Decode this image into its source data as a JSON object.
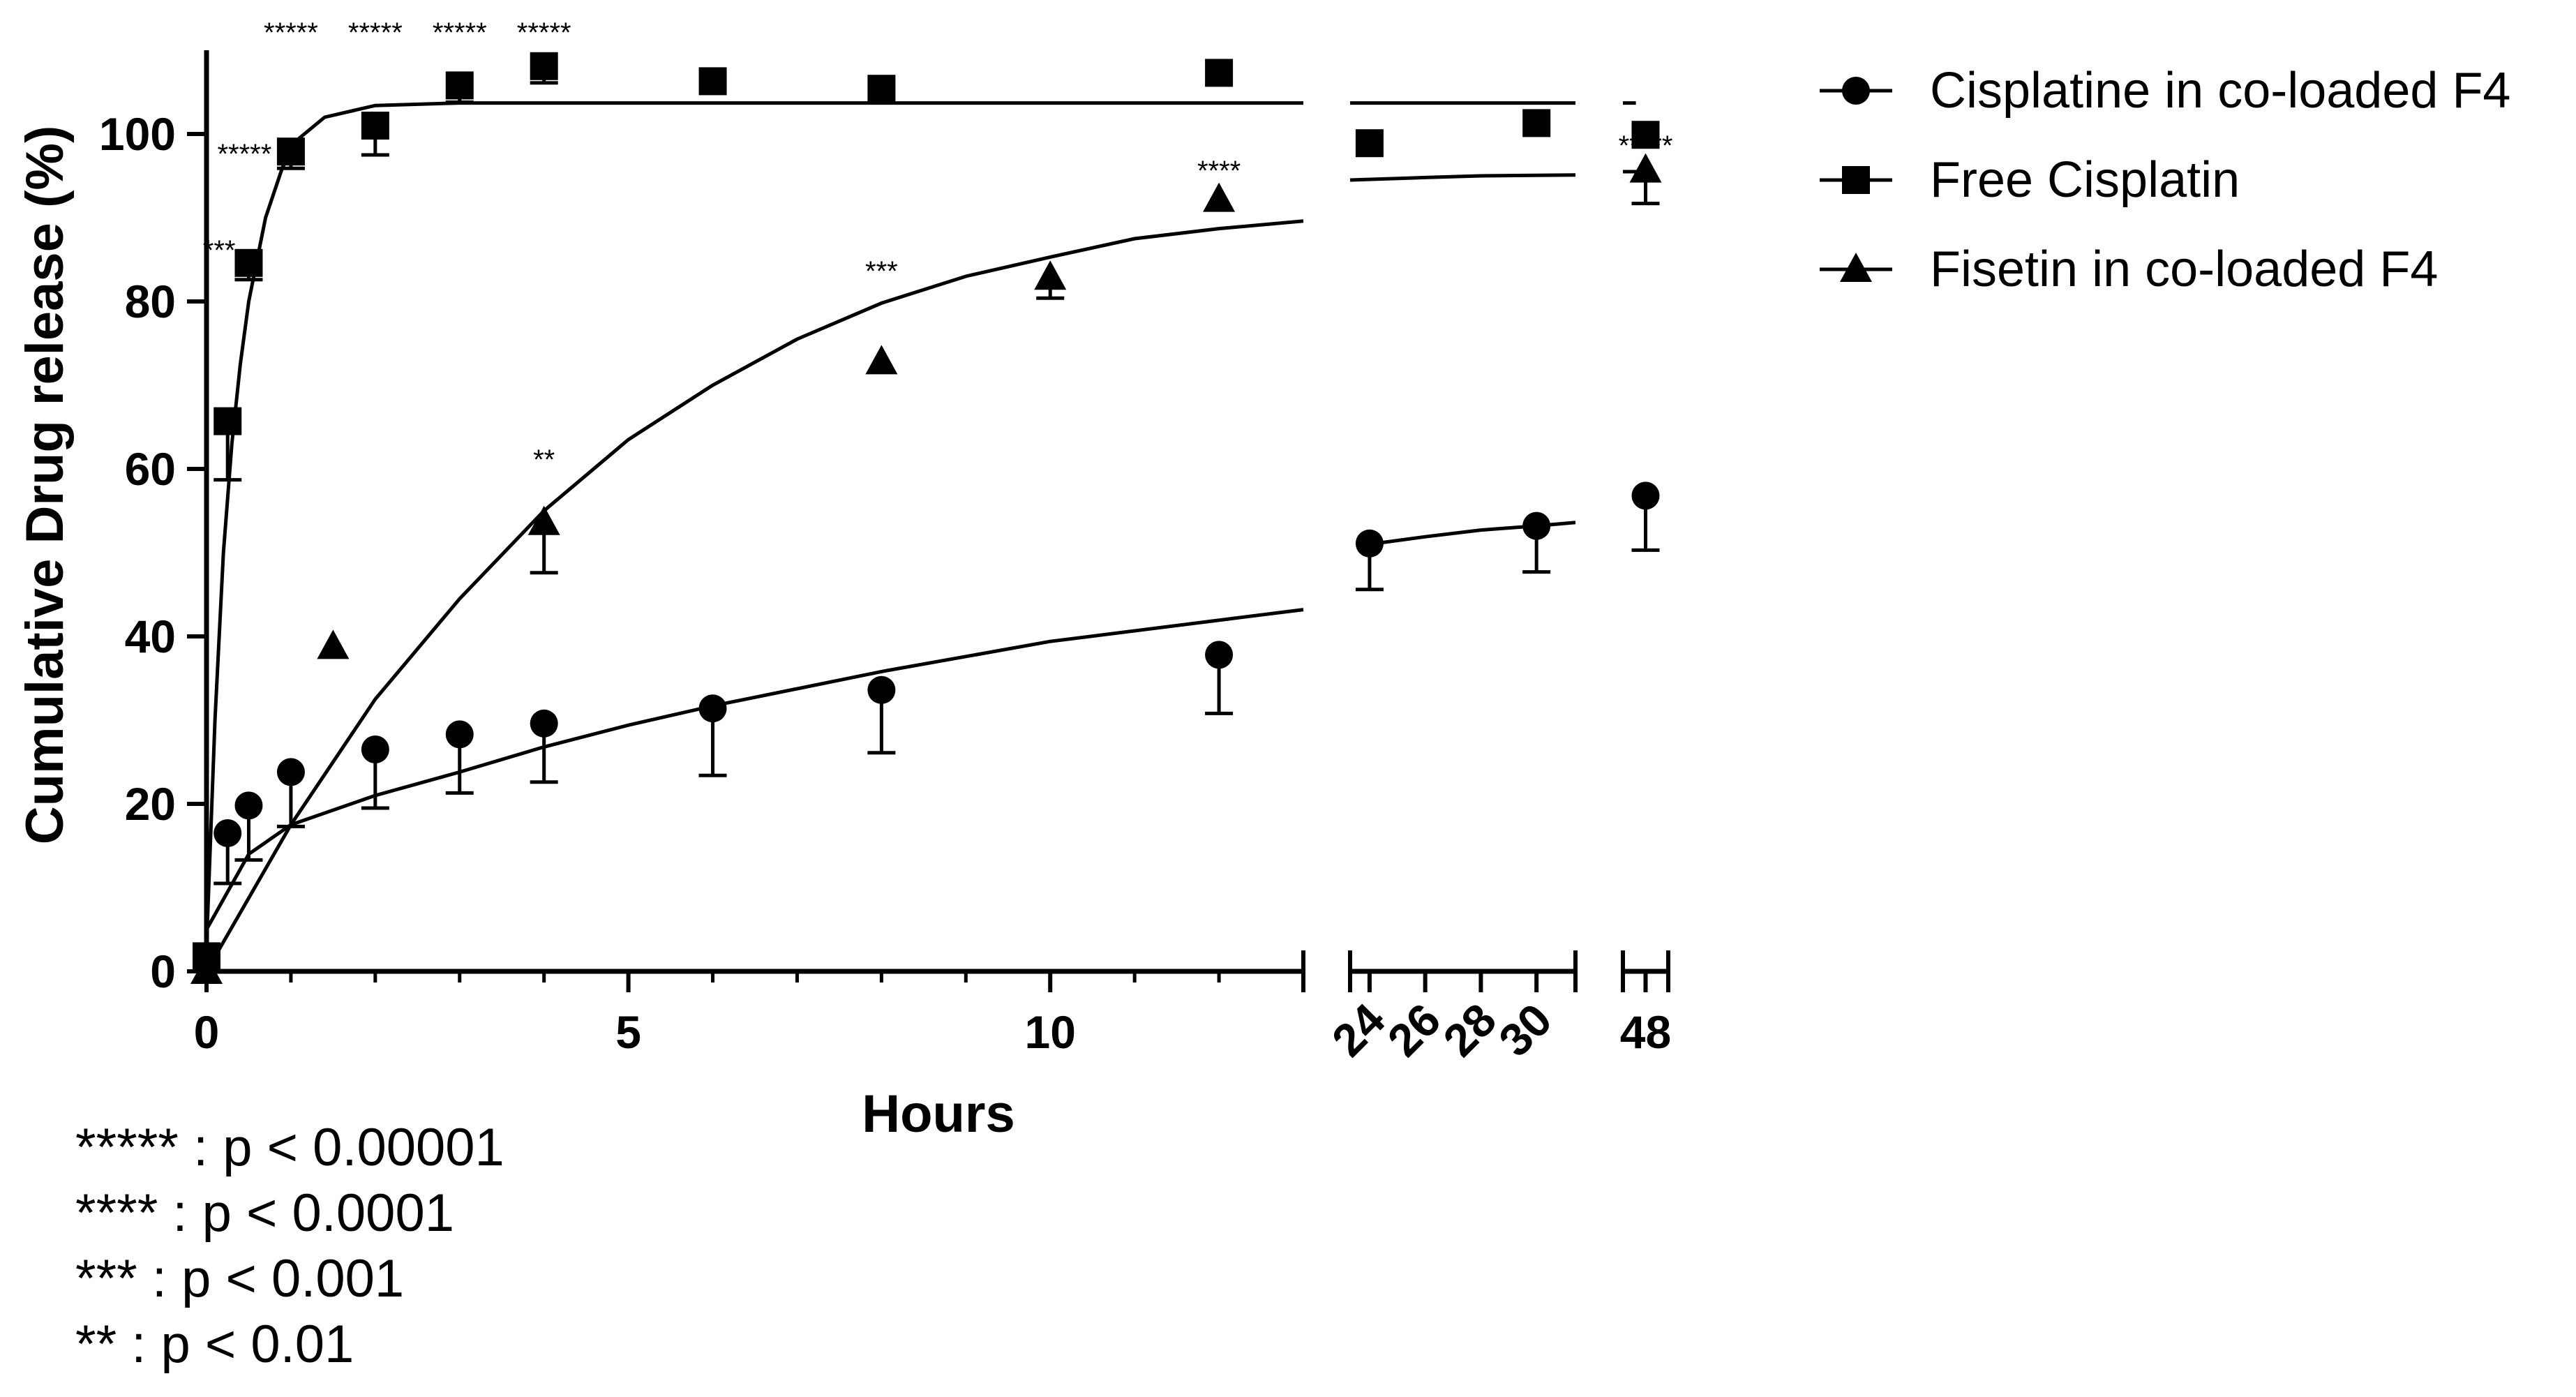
{
  "chart_data": {
    "type": "scatter",
    "title": "",
    "xlabel": "Hours",
    "ylabel": "Cumulative Drug release (%)",
    "ylim": [
      0,
      110
    ],
    "yticks": [
      0,
      20,
      40,
      60,
      80,
      100
    ],
    "grid": false,
    "legend_position": "top-right",
    "x_segments": [
      {
        "range": [
          0,
          13
        ],
        "ticks": [
          0,
          5,
          10
        ],
        "tick_labels": [
          "0",
          "5",
          "10"
        ],
        "minor_step": 1
      },
      {
        "range": [
          23.3,
          31.4
        ],
        "ticks": [
          24,
          26,
          28,
          30
        ],
        "tick_labels": [
          "24",
          "26",
          "28",
          "30"
        ],
        "label_rotation": -45
      },
      {
        "range": [
          47.3,
          48.7
        ],
        "ticks": [
          48
        ],
        "tick_labels": [
          "48"
        ]
      }
    ],
    "series": [
      {
        "name": "Cisplatine in co-loaded F4",
        "marker": "circle",
        "points": [
          {
            "x": 0,
            "y": 1.5,
            "err": 0
          },
          {
            "x": 0.25,
            "y": 16.5,
            "err": 6
          },
          {
            "x": 0.5,
            "y": 19.8,
            "err": 6.5
          },
          {
            "x": 1,
            "y": 23.8,
            "err": 6.5
          },
          {
            "x": 2,
            "y": 26.5,
            "err": 7
          },
          {
            "x": 3,
            "y": 28.3,
            "err": 7
          },
          {
            "x": 4,
            "y": 29.6,
            "err": 7
          },
          {
            "x": 6,
            "y": 31.4,
            "err": 8
          },
          {
            "x": 8,
            "y": 33.6,
            "err": 7.5
          },
          {
            "x": 12,
            "y": 37.8,
            "err": 7
          },
          {
            "x": 24,
            "y": 51.1,
            "err": 5.5
          },
          {
            "x": 30,
            "y": 53.2,
            "err": 5.5
          },
          {
            "x": 48,
            "y": 56.8,
            "err": 6.5
          }
        ],
        "fit": [
          [
            0,
            5
          ],
          [
            0.5,
            14
          ],
          [
            1,
            17.5
          ],
          [
            2,
            21
          ],
          [
            3,
            23.8
          ],
          [
            4,
            26.8
          ],
          [
            5,
            29.4
          ],
          [
            6,
            31.7
          ],
          [
            8,
            35.8
          ],
          [
            10,
            39.4
          ],
          [
            13,
            43.2
          ],
          [
            24,
            51
          ],
          [
            26,
            51.9
          ],
          [
            28,
            52.7
          ],
          [
            30,
            53.2
          ],
          [
            31.4,
            53.6
          ]
        ]
      },
      {
        "name": "Free Cisplatin",
        "marker": "square",
        "points": [
          {
            "x": 0,
            "y": 1.8,
            "err": 0
          },
          {
            "x": 0.25,
            "y": 65.7,
            "err": 7
          },
          {
            "x": 0.5,
            "y": 84.6,
            "err": 2
          },
          {
            "x": 1,
            "y": 97.9,
            "err": 2
          },
          {
            "x": 2,
            "y": 101,
            "err": 3.5
          },
          {
            "x": 3,
            "y": 105.8,
            "err": 2
          },
          {
            "x": 4,
            "y": 108.1,
            "err": 2
          },
          {
            "x": 6,
            "y": 106.3,
            "err": 0
          },
          {
            "x": 8,
            "y": 105.4,
            "err": 0
          },
          {
            "x": 12,
            "y": 107.3,
            "err": 0
          },
          {
            "x": 24,
            "y": 98.9,
            "err": 0
          },
          {
            "x": 30,
            "y": 101.3,
            "err": 0
          },
          {
            "x": 48,
            "y": 99.9,
            "err": 0
          }
        ],
        "fit": [
          [
            0,
            3
          ],
          [
            0.1,
            30
          ],
          [
            0.2,
            50
          ],
          [
            0.3,
            63
          ],
          [
            0.4,
            72.5
          ],
          [
            0.5,
            80
          ],
          [
            0.7,
            90
          ],
          [
            0.9,
            96
          ],
          [
            1.1,
            99.5
          ],
          [
            1.4,
            102
          ],
          [
            2,
            103.4
          ],
          [
            3,
            103.7
          ],
          [
            6,
            103.7
          ],
          [
            13,
            103.7
          ],
          [
            23.3,
            103.7
          ],
          [
            31.4,
            103.7
          ],
          [
            47.3,
            103.7
          ],
          [
            47.7,
            103.7
          ]
        ]
      },
      {
        "name": "Fisetin in co-loaded F4",
        "marker": "triangle",
        "points": [
          {
            "x": 0,
            "y": 0,
            "err": 0
          },
          {
            "x": 1.5,
            "y": 38.8,
            "err": 0
          },
          {
            "x": 4,
            "y": 53.6,
            "err": 6
          },
          {
            "x": 8,
            "y": 72.8,
            "err": 0
          },
          {
            "x": 10,
            "y": 82.9,
            "err": 2.5
          },
          {
            "x": 12,
            "y": 92.2,
            "err": 0
          },
          {
            "x": 48,
            "y": 95.7,
            "err": 4
          }
        ],
        "fit": [
          [
            0,
            0
          ],
          [
            1,
            17.5
          ],
          [
            2,
            32.5
          ],
          [
            3,
            44.5
          ],
          [
            4,
            55
          ],
          [
            5,
            63.5
          ],
          [
            6,
            70
          ],
          [
            7,
            75.5
          ],
          [
            8,
            79.8
          ],
          [
            9,
            83
          ],
          [
            10,
            85.3
          ],
          [
            11,
            87.5
          ],
          [
            12,
            88.7
          ],
          [
            13,
            89.6
          ],
          [
            23.3,
            94.5
          ],
          [
            26,
            94.8
          ],
          [
            28,
            95
          ],
          [
            31.4,
            95.1
          ],
          [
            47.3,
            95.5
          ],
          [
            48,
            95.5
          ]
        ]
      }
    ],
    "annotations": [
      {
        "text": "***",
        "x": 0.15,
        "y": 85
      },
      {
        "text": "*****",
        "x": 0.45,
        "y": 96.5
      },
      {
        "text": "*****",
        "x": 1,
        "y": 111
      },
      {
        "text": "*****",
        "x": 2,
        "y": 111
      },
      {
        "text": "*****",
        "x": 3,
        "y": 111
      },
      {
        "text": "*****",
        "x": 4,
        "y": 111
      },
      {
        "text": "**",
        "x": 4,
        "y": 60
      },
      {
        "text": "***",
        "x": 8,
        "y": 82.5
      },
      {
        "text": "****",
        "x": 12,
        "y": 94.5
      },
      {
        "text": "*****",
        "x": 48,
        "y": 97.5
      }
    ]
  },
  "significance_key": [
    "***** : p < 0.00001",
    "**** : p < 0.0001",
    "*** : p < 0.001",
    "** : p < 0.01"
  ]
}
